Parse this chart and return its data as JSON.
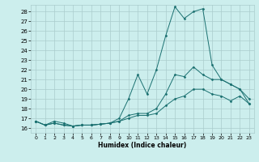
{
  "xlabel": "Humidex (Indice chaleur)",
  "xlim": [
    -0.5,
    23.5
  ],
  "ylim": [
    15.5,
    28.7
  ],
  "yticks": [
    16,
    17,
    18,
    19,
    20,
    21,
    22,
    23,
    24,
    25,
    26,
    27,
    28
  ],
  "xticks": [
    0,
    1,
    2,
    3,
    4,
    5,
    6,
    7,
    8,
    9,
    10,
    11,
    12,
    13,
    14,
    15,
    16,
    17,
    18,
    19,
    20,
    21,
    22,
    23
  ],
  "background_color": "#cceeed",
  "grid_color": "#aacccc",
  "line_color": "#1a7070",
  "max_y": [
    16.7,
    16.3,
    16.7,
    16.5,
    16.2,
    16.3,
    16.3,
    16.4,
    16.5,
    17.0,
    19.0,
    21.5,
    19.5,
    22.0,
    25.5,
    28.5,
    27.3,
    28.0,
    28.3,
    22.5,
    21.0,
    20.5,
    20.0,
    19.0
  ],
  "mean_y": [
    16.7,
    16.3,
    16.5,
    16.3,
    16.2,
    16.3,
    16.3,
    16.4,
    16.5,
    16.7,
    17.3,
    17.5,
    17.5,
    18.0,
    19.5,
    21.5,
    21.3,
    22.3,
    21.5,
    21.0,
    21.0,
    20.5,
    20.0,
    18.5
  ],
  "min_y": [
    16.7,
    16.3,
    16.5,
    16.3,
    16.2,
    16.3,
    16.3,
    16.4,
    16.5,
    16.7,
    17.0,
    17.3,
    17.3,
    17.5,
    18.3,
    19.0,
    19.3,
    20.0,
    20.0,
    19.5,
    19.3,
    18.8,
    19.3,
    18.5
  ]
}
